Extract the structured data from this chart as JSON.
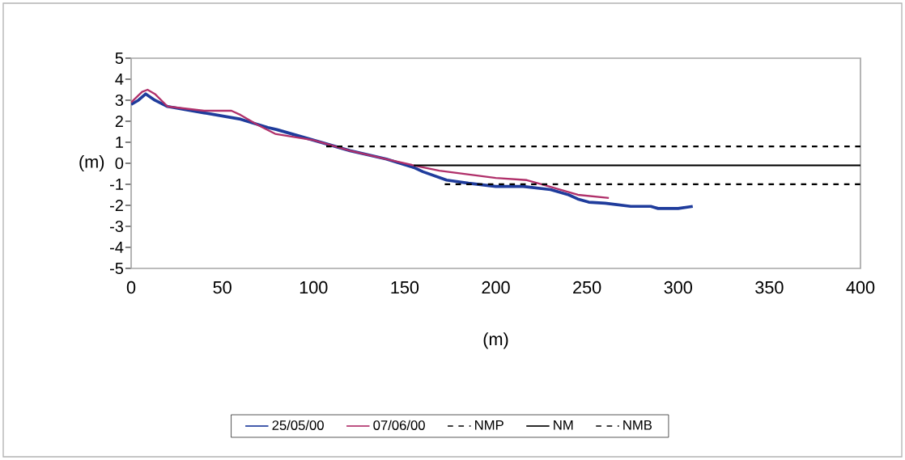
{
  "chart_data": {
    "type": "line",
    "xlabel": "(m)",
    "ylabel": "(m)",
    "xlim": [
      0,
      400
    ],
    "ylim": [
      -5,
      5
    ],
    "xticks": [
      0,
      50,
      100,
      150,
      200,
      250,
      300,
      350,
      400
    ],
    "yticks": [
      -5,
      -4,
      -3,
      -2,
      -1,
      0,
      1,
      2,
      3,
      4,
      5
    ],
    "grid": false,
    "legend": "bottom",
    "series": [
      {
        "name": "25/05/00",
        "color": "#1f3c9c",
        "line_style": "solid",
        "x": [
          0,
          4,
          8,
          13,
          20,
          40,
          60,
          75,
          80,
          100,
          120,
          140,
          155,
          160,
          173,
          185,
          200,
          215,
          230,
          240,
          245,
          251,
          260,
          274,
          285,
          289,
          300,
          308
        ],
        "values": [
          2.8,
          3.0,
          3.3,
          3.0,
          2.7,
          2.4,
          2.1,
          1.7,
          1.6,
          1.1,
          0.6,
          0.2,
          -0.2,
          -0.4,
          -0.8,
          -0.95,
          -1.1,
          -1.1,
          -1.25,
          -1.5,
          -1.7,
          -1.85,
          -1.9,
          -2.05,
          -2.05,
          -2.15,
          -2.15,
          -2.05
        ]
      },
      {
        "name": "07/06/00",
        "color": "#b0306a",
        "line_style": "solid",
        "x": [
          0,
          6,
          9,
          13,
          20,
          40,
          55,
          60,
          70,
          79,
          100,
          120,
          140,
          155,
          169,
          200,
          217,
          225,
          245,
          262
        ],
        "values": [
          2.9,
          3.4,
          3.5,
          3.3,
          2.7,
          2.5,
          2.5,
          2.3,
          1.8,
          1.4,
          1.1,
          0.6,
          0.2,
          -0.1,
          -0.35,
          -0.7,
          -0.8,
          -1.0,
          -1.5,
          -1.65
        ]
      },
      {
        "name": "NMP",
        "color": "#000000",
        "line_style": "dashed",
        "x": [
          107,
          400
        ],
        "values": [
          0.8,
          0.8
        ]
      },
      {
        "name": "NM",
        "color": "#000000",
        "line_style": "solid",
        "x": [
          155,
          400
        ],
        "values": [
          -0.1,
          -0.1
        ]
      },
      {
        "name": "NMB",
        "color": "#000000",
        "line_style": "dashed",
        "x": [
          172,
          400
        ],
        "values": [
          -1,
          -1
        ]
      }
    ]
  }
}
